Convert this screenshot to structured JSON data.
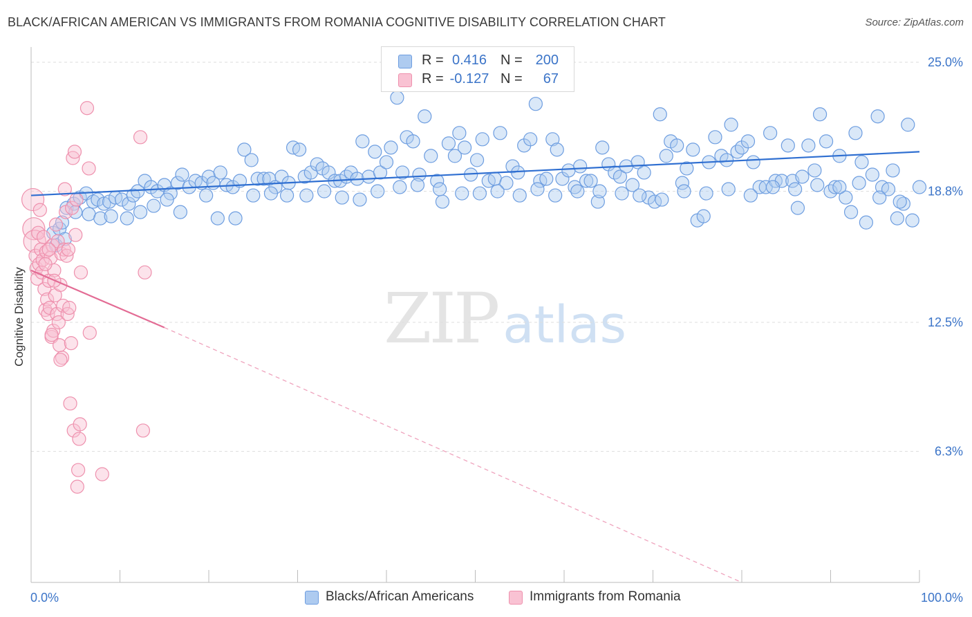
{
  "title": "BLACK/AFRICAN AMERICAN VS IMMIGRANTS FROM ROMANIA COGNITIVE DISABILITY CORRELATION CHART",
  "source": "Source: ZipAtlas.com",
  "watermark": {
    "zip": "ZIP",
    "atlas": "atlas"
  },
  "legend": {
    "rows": [
      {
        "r_label": "R =",
        "r_value": "0.416",
        "n_label": "N =",
        "n_value": "200",
        "color": "#aecbf0",
        "border": "#6d9de0"
      },
      {
        "r_label": "R =",
        "r_value": "-0.127",
        "n_label": "N =",
        "n_value": "67",
        "color": "#f9c2d3",
        "border": "#ee90ad"
      }
    ]
  },
  "bottom_legend": [
    {
      "label": "Blacks/African Americans",
      "color": "#aecbf0",
      "border": "#6d9de0"
    },
    {
      "label": "Immigrants from Romania",
      "color": "#f9c2d3",
      "border": "#ee90ad"
    }
  ],
  "chart_data": {
    "type": "scatter",
    "title": "BLACK/AFRICAN AMERICAN VS IMMIGRANTS FROM ROMANIA COGNITIVE DISABILITY CORRELATION CHART",
    "xlabel": "",
    "ylabel": "Cognitive Disability",
    "xlim": [
      0,
      100
    ],
    "ylim": [
      0,
      25.6
    ],
    "x_tick_labels": [
      "0.0%",
      "100.0%"
    ],
    "y_ticks": [
      6.3,
      12.5,
      18.8,
      25.0
    ],
    "y_tick_labels": [
      "6.3%",
      "12.5%",
      "18.8%",
      "25.0%"
    ],
    "grid": true,
    "series": [
      {
        "name": "Blacks/African Americans",
        "color": "#6d9de0",
        "fill": "#aecbf0",
        "trend": {
          "x0": 0,
          "y0": 18.6,
          "x1": 100,
          "y1": 20.7,
          "style": "solid",
          "color": "#2f6fd1"
        },
        "points": [
          [
            2.5,
            16.8
          ],
          [
            3.2,
            17.0
          ],
          [
            3.5,
            17.3
          ],
          [
            4.0,
            18.0
          ],
          [
            4.8,
            18.2
          ],
          [
            5.5,
            18.5
          ],
          [
            6.2,
            18.7
          ],
          [
            7.0,
            18.3
          ],
          [
            7.5,
            18.4
          ],
          [
            8.2,
            18.2
          ],
          [
            8.8,
            18.3
          ],
          [
            9.5,
            18.5
          ],
          [
            10.2,
            18.4
          ],
          [
            11.0,
            18.2
          ],
          [
            11.5,
            18.6
          ],
          [
            12.0,
            18.8
          ],
          [
            12.8,
            19.3
          ],
          [
            13.5,
            19.0
          ],
          [
            14.2,
            18.8
          ],
          [
            15.0,
            19.1
          ],
          [
            15.7,
            18.7
          ],
          [
            16.5,
            19.2
          ],
          [
            17.0,
            19.6
          ],
          [
            17.8,
            19.0
          ],
          [
            18.5,
            19.3
          ],
          [
            19.2,
            19.2
          ],
          [
            20.0,
            19.5
          ],
          [
            20.5,
            19.2
          ],
          [
            21.3,
            19.7
          ],
          [
            22.0,
            19.1
          ],
          [
            22.7,
            19.0
          ],
          [
            23.5,
            19.3
          ],
          [
            24.0,
            20.8
          ],
          [
            24.8,
            20.3
          ],
          [
            25.5,
            19.4
          ],
          [
            26.2,
            19.4
          ],
          [
            26.8,
            19.4
          ],
          [
            27.5,
            19.0
          ],
          [
            28.2,
            19.5
          ],
          [
            29.0,
            19.2
          ],
          [
            29.5,
            20.9
          ],
          [
            30.2,
            20.8
          ],
          [
            30.8,
            19.5
          ],
          [
            31.5,
            19.7
          ],
          [
            32.2,
            20.1
          ],
          [
            32.8,
            19.9
          ],
          [
            33.5,
            19.7
          ],
          [
            34.2,
            19.3
          ],
          [
            34.8,
            19.3
          ],
          [
            35.5,
            19.5
          ],
          [
            36.0,
            19.7
          ],
          [
            36.7,
            19.4
          ],
          [
            37.3,
            21.2
          ],
          [
            38.0,
            19.5
          ],
          [
            38.7,
            20.7
          ],
          [
            39.3,
            19.7
          ],
          [
            40.0,
            20.2
          ],
          [
            40.5,
            20.9
          ],
          [
            41.2,
            23.3
          ],
          [
            41.8,
            19.7
          ],
          [
            42.3,
            21.4
          ],
          [
            43.0,
            21.2
          ],
          [
            43.7,
            19.6
          ],
          [
            44.3,
            22.4
          ],
          [
            45.0,
            20.5
          ],
          [
            45.7,
            19.3
          ],
          [
            46.3,
            18.3
          ],
          [
            47.0,
            21.1
          ],
          [
            47.7,
            20.5
          ],
          [
            48.2,
            21.6
          ],
          [
            48.8,
            20.9
          ],
          [
            49.5,
            19.6
          ],
          [
            50.2,
            20.3
          ],
          [
            50.8,
            21.3
          ],
          [
            51.5,
            19.3
          ],
          [
            52.2,
            19.4
          ],
          [
            52.8,
            21.6
          ],
          [
            53.5,
            19.2
          ],
          [
            54.2,
            20.0
          ],
          [
            54.8,
            19.7
          ],
          [
            55.5,
            21.0
          ],
          [
            56.2,
            21.3
          ],
          [
            56.8,
            23.0
          ],
          [
            57.3,
            19.3
          ],
          [
            58.0,
            19.4
          ],
          [
            58.7,
            21.3
          ],
          [
            59.2,
            20.8
          ],
          [
            59.8,
            19.4
          ],
          [
            60.5,
            19.8
          ],
          [
            61.2,
            19.0
          ],
          [
            61.8,
            20.0
          ],
          [
            62.5,
            19.3
          ],
          [
            63.0,
            19.3
          ],
          [
            63.8,
            18.3
          ],
          [
            64.3,
            20.9
          ],
          [
            65.0,
            20.1
          ],
          [
            65.7,
            19.7
          ],
          [
            66.3,
            19.5
          ],
          [
            67.0,
            20.0
          ],
          [
            67.7,
            19.1
          ],
          [
            68.3,
            20.2
          ],
          [
            69.0,
            19.7
          ],
          [
            69.5,
            18.5
          ],
          [
            70.2,
            18.3
          ],
          [
            70.8,
            22.5
          ],
          [
            71.5,
            20.5
          ],
          [
            72.0,
            21.2
          ],
          [
            72.7,
            21.0
          ],
          [
            73.3,
            19.2
          ],
          [
            73.8,
            19.9
          ],
          [
            74.5,
            20.8
          ],
          [
            75.0,
            17.4
          ],
          [
            75.7,
            17.6
          ],
          [
            76.3,
            20.2
          ],
          [
            77.0,
            21.4
          ],
          [
            77.7,
            20.5
          ],
          [
            78.3,
            20.3
          ],
          [
            78.8,
            22.0
          ],
          [
            79.5,
            20.7
          ],
          [
            80.0,
            20.9
          ],
          [
            80.7,
            21.2
          ],
          [
            81.3,
            20.2
          ],
          [
            82.0,
            19.0
          ],
          [
            82.7,
            19.0
          ],
          [
            83.2,
            21.6
          ],
          [
            83.8,
            19.3
          ],
          [
            84.5,
            19.3
          ],
          [
            85.2,
            21.0
          ],
          [
            85.7,
            19.3
          ],
          [
            86.3,
            18.0
          ],
          [
            86.8,
            19.5
          ],
          [
            87.5,
            21.0
          ],
          [
            88.2,
            19.8
          ],
          [
            88.8,
            22.5
          ],
          [
            89.5,
            21.2
          ],
          [
            90.0,
            18.8
          ],
          [
            90.5,
            19.0
          ],
          [
            91.0,
            20.5
          ],
          [
            91.7,
            18.5
          ],
          [
            92.3,
            17.8
          ],
          [
            92.8,
            21.6
          ],
          [
            93.5,
            20.2
          ],
          [
            94.0,
            17.3
          ],
          [
            94.7,
            19.6
          ],
          [
            95.3,
            22.4
          ],
          [
            95.8,
            19.0
          ],
          [
            96.5,
            18.9
          ],
          [
            97.0,
            19.8
          ],
          [
            97.5,
            17.5
          ],
          [
            98.2,
            18.2
          ],
          [
            98.7,
            22.0
          ],
          [
            99.2,
            17.4
          ],
          [
            100.0,
            19.0
          ],
          [
            2.8,
            16.2
          ],
          [
            3.8,
            16.5
          ],
          [
            5.0,
            17.8
          ],
          [
            6.5,
            17.7
          ],
          [
            7.8,
            17.5
          ],
          [
            9.0,
            17.6
          ],
          [
            10.8,
            17.5
          ],
          [
            12.3,
            17.8
          ],
          [
            13.8,
            18.1
          ],
          [
            15.3,
            18.4
          ],
          [
            16.8,
            17.8
          ],
          [
            19.7,
            18.6
          ],
          [
            21.0,
            17.5
          ],
          [
            23.0,
            17.5
          ],
          [
            25.0,
            18.6
          ],
          [
            27.0,
            18.7
          ],
          [
            28.8,
            18.6
          ],
          [
            31.0,
            18.6
          ],
          [
            33.0,
            18.8
          ],
          [
            35.0,
            18.5
          ],
          [
            37.0,
            18.4
          ],
          [
            39.0,
            18.8
          ],
          [
            41.5,
            19.0
          ],
          [
            43.5,
            19.1
          ],
          [
            46.0,
            18.9
          ],
          [
            48.5,
            18.7
          ],
          [
            50.5,
            18.7
          ],
          [
            52.5,
            18.8
          ],
          [
            55.0,
            18.6
          ],
          [
            57.0,
            18.9
          ],
          [
            59.0,
            18.6
          ],
          [
            61.5,
            18.8
          ],
          [
            64.0,
            18.8
          ],
          [
            66.5,
            18.7
          ],
          [
            68.5,
            18.6
          ],
          [
            71.0,
            18.4
          ],
          [
            73.5,
            18.8
          ],
          [
            76.0,
            18.7
          ],
          [
            78.5,
            18.9
          ],
          [
            81.0,
            18.6
          ],
          [
            83.5,
            19.0
          ],
          [
            86.0,
            18.9
          ],
          [
            88.5,
            19.1
          ],
          [
            91.0,
            19.0
          ],
          [
            93.2,
            19.2
          ],
          [
            95.5,
            18.5
          ],
          [
            97.8,
            18.3
          ]
        ]
      },
      {
        "name": "Immigrants from Romania",
        "color": "#ee90ad",
        "fill": "#f9c2d3",
        "trend": {
          "x0": 0,
          "y0": 15.0,
          "x1": 15.0,
          "y1": 12.25,
          "style": "solid",
          "color": "#e36b94"
        },
        "trend_extension": {
          "x0": 15.0,
          "y0": 12.25,
          "x1": 80.0,
          "y1": 0.0,
          "style": "dashed",
          "color": "#efa3bd"
        },
        "points": [
          [
            0.2,
            18.4
          ],
          [
            0.3,
            17.0
          ],
          [
            0.4,
            16.4
          ],
          [
            0.5,
            15.7
          ],
          [
            0.6,
            15.1
          ],
          [
            0.7,
            14.6
          ],
          [
            0.8,
            16.8
          ],
          [
            0.9,
            15.3
          ],
          [
            1.0,
            17.9
          ],
          [
            1.1,
            16.0
          ],
          [
            1.2,
            14.9
          ],
          [
            1.3,
            15.5
          ],
          [
            1.4,
            16.6
          ],
          [
            1.5,
            14.1
          ],
          [
            1.6,
            13.1
          ],
          [
            1.7,
            15.9
          ],
          [
            1.8,
            13.6
          ],
          [
            1.9,
            12.9
          ],
          [
            2.0,
            14.5
          ],
          [
            2.1,
            13.2
          ],
          [
            2.2,
            15.6
          ],
          [
            2.3,
            11.8
          ],
          [
            2.4,
            16.2
          ],
          [
            2.5,
            12.1
          ],
          [
            2.6,
            15.0
          ],
          [
            2.7,
            13.8
          ],
          [
            2.8,
            17.2
          ],
          [
            2.9,
            12.9
          ],
          [
            3.0,
            16.4
          ],
          [
            3.1,
            12.5
          ],
          [
            3.2,
            11.4
          ],
          [
            3.3,
            14.3
          ],
          [
            3.4,
            15.8
          ],
          [
            3.5,
            10.8
          ],
          [
            3.6,
            13.3
          ],
          [
            3.7,
            16.0
          ],
          [
            3.8,
            18.9
          ],
          [
            3.9,
            17.8
          ],
          [
            4.0,
            15.7
          ],
          [
            4.1,
            12.9
          ],
          [
            4.2,
            16.0
          ],
          [
            4.3,
            13.2
          ],
          [
            4.4,
            8.6
          ],
          [
            4.5,
            11.5
          ],
          [
            4.6,
            18.0
          ],
          [
            4.7,
            20.4
          ],
          [
            4.8,
            7.3
          ],
          [
            4.9,
            20.7
          ],
          [
            5.0,
            16.7
          ],
          [
            5.1,
            18.4
          ],
          [
            5.2,
            4.6
          ],
          [
            5.3,
            5.4
          ],
          [
            5.4,
            6.9
          ],
          [
            5.5,
            7.6
          ],
          [
            5.6,
            14.9
          ],
          [
            6.5,
            19.9
          ],
          [
            6.6,
            12.0
          ],
          [
            12.3,
            21.4
          ],
          [
            12.6,
            7.3
          ],
          [
            12.8,
            14.9
          ],
          [
            2.3,
            11.9
          ],
          [
            2.6,
            14.5
          ],
          [
            3.3,
            10.7
          ],
          [
            1.6,
            15.3
          ],
          [
            2.0,
            16.0
          ],
          [
            6.3,
            22.8
          ],
          [
            8.0,
            5.2
          ]
        ]
      }
    ]
  }
}
